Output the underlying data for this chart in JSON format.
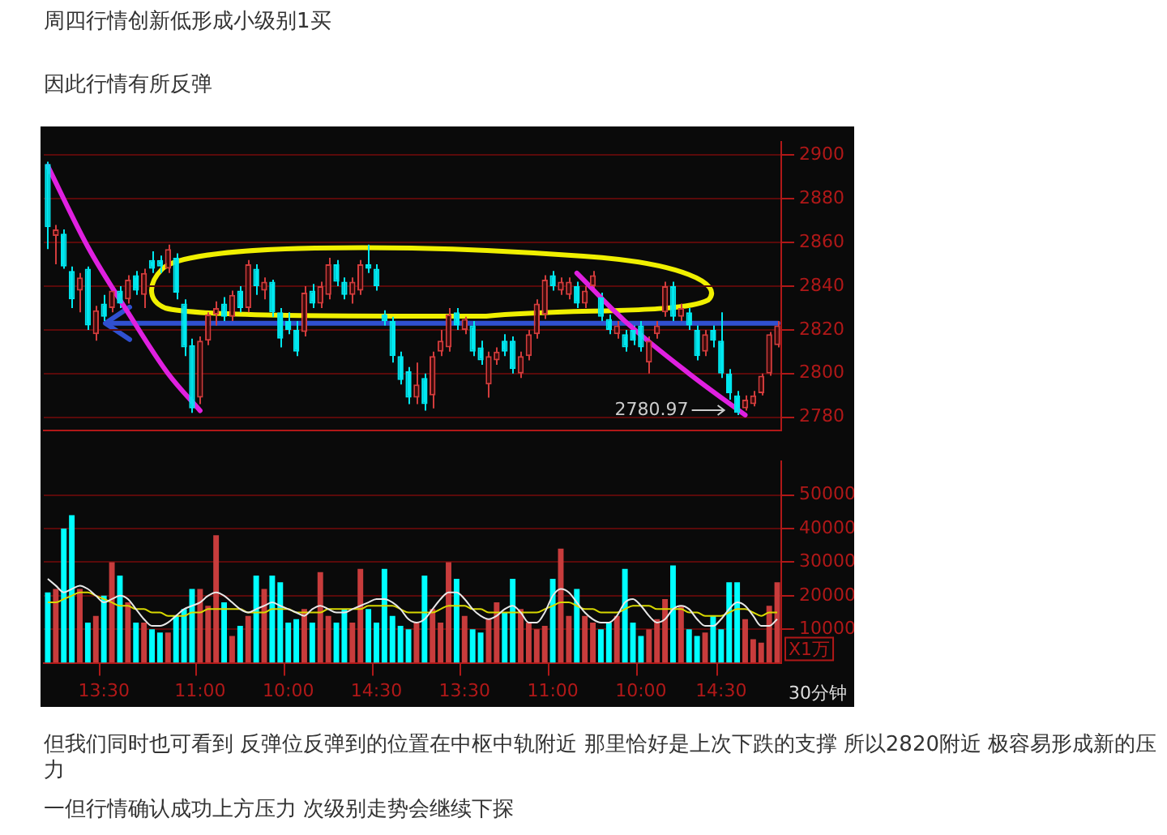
{
  "chart_data": [
    {
      "type": "candlestick",
      "title": "周四行情创新低形成小级别1买",
      "subtitle": "因此行情有所反弹",
      "categories": [
        null,
        null,
        null,
        null,
        null,
        null,
        null,
        null,
        null,
        null,
        null,
        null,
        null,
        null,
        null,
        null,
        null,
        null,
        null,
        null,
        null,
        null,
        null,
        null,
        null,
        null,
        null,
        null,
        null,
        null,
        null,
        null,
        null,
        null,
        null,
        null,
        null,
        null,
        null,
        null,
        null,
        null,
        null,
        null,
        null,
        null,
        null,
        null,
        null,
        null,
        null,
        null,
        null,
        null,
        null,
        null,
        null,
        null,
        null,
        null,
        null,
        null,
        null,
        null,
        null,
        null,
        null,
        null,
        null,
        null,
        null,
        null,
        null,
        null,
        null,
        null,
        null,
        null,
        null,
        null,
        null,
        null,
        null,
        null,
        null,
        null,
        null,
        null,
        null,
        null,
        null,
        null
      ],
      "series": [
        {
          "type": "line",
          "color": "#e020e0",
          "values": [
            2895,
            null,
            null,
            null,
            null,
            2858,
            null,
            null,
            null,
            null,
            2828,
            null,
            null,
            null,
            null,
            2800,
            null,
            null,
            null,
            2783,
            null,
            null,
            null,
            null,
            null,
            null,
            null,
            null,
            null,
            null,
            null,
            null,
            null,
            null,
            null,
            null,
            null,
            null,
            null,
            null,
            null,
            null,
            null,
            null,
            null,
            null,
            null,
            null,
            null,
            null,
            null,
            null,
            null,
            null,
            null,
            null,
            null,
            null,
            null,
            null,
            null,
            null,
            null,
            null,
            null,
            null,
            null,
            null,
            null,
            null,
            null,
            null,
            null,
            null,
            null,
            null,
            null,
            null,
            null,
            null,
            null,
            null,
            null,
            null,
            null,
            null,
            null,
            null,
            null,
            null,
            null,
            null
          ]
        },
        {
          "type": "line",
          "color": "#e020e0",
          "values": [
            null,
            null,
            null,
            null,
            null,
            null,
            null,
            null,
            null,
            null,
            null,
            null,
            null,
            null,
            null,
            null,
            null,
            null,
            null,
            null,
            null,
            null,
            null,
            null,
            null,
            null,
            null,
            null,
            null,
            null,
            null,
            null,
            null,
            null,
            null,
            null,
            null,
            null,
            null,
            null,
            null,
            null,
            null,
            null,
            null,
            null,
            null,
            null,
            null,
            null,
            null,
            null,
            null,
            null,
            null,
            null,
            null,
            null,
            null,
            null,
            null,
            null,
            null,
            null,
            null,
            null,
            2846,
            null,
            null,
            null,
            null,
            null,
            2824,
            null,
            null,
            null,
            null,
            null,
            null,
            null,
            2800,
            null,
            null,
            null,
            null,
            null,
            null,
            2781,
            null,
            null,
            null,
            null
          ]
        }
      ],
      "ref_lines": [
        {
          "axis": "y",
          "value": 2823,
          "color": "#3050d0"
        }
      ],
      "ohlc": [
        [
          2896,
          2897,
          2857,
          2867
        ],
        [
          2863,
          2868,
          2850,
          2866
        ],
        [
          2864,
          2866,
          2848,
          2849
        ],
        [
          2847,
          2849,
          2830,
          2834
        ],
        [
          2838,
          2846,
          2828,
          2844
        ],
        [
          2848,
          2849,
          2820,
          2822
        ],
        [
          2818,
          2831,
          2815,
          2829
        ],
        [
          2832,
          2836,
          2824,
          2826
        ],
        [
          2830,
          2840,
          2828,
          2838
        ],
        [
          2838,
          2840,
          2830,
          2832
        ],
        [
          2834,
          2845,
          2832,
          2843
        ],
        [
          2845,
          2847,
          2836,
          2838
        ],
        [
          2836,
          2848,
          2830,
          2846
        ],
        [
          2852,
          2856,
          2846,
          2848
        ],
        [
          2852,
          2854,
          2846,
          2849
        ],
        [
          2848,
          2859,
          2846,
          2857
        ],
        [
          2853,
          2855,
          2834,
          2837
        ],
        [
          2832,
          2834,
          2808,
          2812
        ],
        [
          2813,
          2816,
          2782,
          2784
        ],
        [
          2789,
          2817,
          2786,
          2815
        ],
        [
          2815,
          2828,
          2813,
          2827
        ],
        [
          2827,
          2833,
          2822,
          2830
        ],
        [
          2832,
          2835,
          2824,
          2826
        ],
        [
          2826,
          2838,
          2824,
          2836
        ],
        [
          2838,
          2840,
          2828,
          2830
        ],
        [
          2830,
          2852,
          2828,
          2850
        ],
        [
          2848,
          2850,
          2836,
          2840
        ],
        [
          2838,
          2844,
          2834,
          2842
        ],
        [
          2842,
          2843,
          2826,
          2828
        ],
        [
          2828,
          2830,
          2812,
          2816
        ],
        [
          2824,
          2828,
          2818,
          2820
        ],
        [
          2820,
          2824,
          2808,
          2810
        ],
        [
          2819,
          2840,
          2817,
          2837
        ],
        [
          2838,
          2841,
          2830,
          2832
        ],
        [
          2832,
          2842,
          2830,
          2840
        ],
        [
          2836,
          2853,
          2834,
          2850
        ],
        [
          2850,
          2852,
          2840,
          2842
        ],
        [
          2842,
          2844,
          2834,
          2836
        ],
        [
          2836,
          2844,
          2832,
          2842
        ],
        [
          2838,
          2852,
          2836,
          2850
        ],
        [
          2850,
          2859,
          2846,
          2848
        ],
        [
          2848,
          2850,
          2838,
          2840
        ],
        [
          2827,
          2829,
          2822,
          2824
        ],
        [
          2824,
          2826,
          2805,
          2808
        ],
        [
          2808,
          2810,
          2795,
          2797
        ],
        [
          2801,
          2803,
          2786,
          2789
        ],
        [
          2789,
          2805,
          2786,
          2795
        ],
        [
          2798,
          2800,
          2783,
          2786
        ],
        [
          2790,
          2810,
          2784,
          2808
        ],
        [
          2810,
          2820,
          2808,
          2815
        ],
        [
          2812,
          2830,
          2810,
          2827
        ],
        [
          2828,
          2830,
          2820,
          2822
        ],
        [
          2820,
          2826,
          2818,
          2825
        ],
        [
          2822,
          2824,
          2808,
          2810
        ],
        [
          2812,
          2815,
          2804,
          2806
        ],
        [
          2795,
          2810,
          2789,
          2808
        ],
        [
          2806,
          2812,
          2804,
          2810
        ],
        [
          2815,
          2818,
          2808,
          2810
        ],
        [
          2815,
          2817,
          2800,
          2802
        ],
        [
          2800,
          2810,
          2798,
          2808
        ],
        [
          2808,
          2820,
          2806,
          2818
        ],
        [
          2818,
          2834,
          2816,
          2832
        ],
        [
          2827,
          2845,
          2825,
          2843
        ],
        [
          2845,
          2847,
          2838,
          2840
        ],
        [
          2838,
          2844,
          2836,
          2842
        ],
        [
          2836,
          2844,
          2834,
          2842
        ],
        [
          2840,
          2842,
          2830,
          2832
        ],
        [
          2832,
          2840,
          2830,
          2838
        ],
        [
          2840,
          2847,
          2838,
          2845
        ],
        [
          2835,
          2837,
          2824,
          2826
        ],
        [
          2825,
          2827,
          2818,
          2820
        ],
        [
          2818,
          2824,
          2816,
          2822
        ],
        [
          2818,
          2820,
          2810,
          2812
        ],
        [
          2820,
          2822,
          2813,
          2815
        ],
        [
          2822,
          2824,
          2810,
          2812
        ],
        [
          2805,
          2817,
          2800,
          2815
        ],
        [
          2818,
          2824,
          2816,
          2822
        ],
        [
          2828,
          2842,
          2826,
          2840
        ],
        [
          2840,
          2842,
          2824,
          2826
        ],
        [
          2826,
          2832,
          2824,
          2830
        ],
        [
          2828,
          2830,
          2820,
          2822
        ],
        [
          2820,
          2822,
          2806,
          2808
        ],
        [
          2810,
          2820,
          2808,
          2818
        ],
        [
          2820,
          2822,
          2812,
          2815
        ],
        [
          2815,
          2828,
          2798,
          2800
        ],
        [
          2800,
          2802,
          2788,
          2791
        ],
        [
          2790,
          2792,
          2780.97,
          2782
        ],
        [
          2784,
          2790,
          2783,
          2788
        ],
        [
          2786,
          2792,
          2785,
          2790
        ],
        [
          2791,
          2800,
          2790,
          2799
        ],
        [
          2800,
          2819,
          2799,
          2818
        ],
        [
          2813,
          2824,
          2812,
          2822
        ]
      ],
      "ylim": [
        2774,
        2906
      ],
      "yticks": [
        2780,
        2800,
        2820,
        2840,
        2860,
        2880,
        2900
      ],
      "grid": "y",
      "tick_labels": "y",
      "annotations": [
        "2780.97",
        "但我们同时也可看到 反弹位反弹到的位置在中枢中轨附近 那里恰好是上次下跌的支撑 所以2820附近 极容易形成新的压力",
        "一但行情确认成功上方压力 次级别走势会继续下探"
      ]
    },
    {
      "type": "bar",
      "ylabel": "X1万",
      "annotations": [
        "30分钟"
      ],
      "categories": [
        null,
        null,
        null,
        null,
        null,
        null,
        null,
        "13:30",
        null,
        null,
        null,
        null,
        null,
        null,
        null,
        null,
        null,
        null,
        null,
        "11:00",
        null,
        null,
        null,
        null,
        null,
        null,
        null,
        null,
        null,
        null,
        "10:00",
        null,
        null,
        null,
        null,
        null,
        null,
        null,
        null,
        null,
        null,
        "14:30",
        null,
        null,
        null,
        null,
        null,
        null,
        null,
        null,
        null,
        null,
        "13:30",
        null,
        null,
        null,
        null,
        null,
        null,
        null,
        null,
        null,
        null,
        "11:00",
        null,
        null,
        null,
        null,
        null,
        null,
        null,
        null,
        null,
        null,
        "10:00",
        null,
        null,
        null,
        null,
        null,
        null,
        null,
        null,
        null,
        "14:30",
        null,
        null,
        null,
        null,
        null,
        null,
        null
      ],
      "series": [
        {
          "type": "bar",
          "values": [
            21000,
            22000,
            40000,
            44000,
            22000,
            12000,
            14000,
            20000,
            30000,
            26000,
            18000,
            12000,
            12000,
            10000,
            9000,
            9000,
            14000,
            16000,
            22000,
            22000,
            17000,
            38000,
            18000,
            8000,
            11000,
            14000,
            26000,
            22000,
            26000,
            24000,
            12000,
            13000,
            16000,
            12000,
            27000,
            14000,
            12000,
            16000,
            12000,
            28000,
            16000,
            12000,
            28000,
            14000,
            11000,
            10000,
            12000,
            26000,
            16000,
            12000,
            30000,
            25000,
            14000,
            10000,
            9000,
            13000,
            18000,
            15000,
            25000,
            16000,
            12000,
            10000,
            11000,
            25000,
            34000,
            14000,
            22000,
            14000,
            12000,
            10000,
            12000,
            14000,
            28000,
            12000,
            8000,
            10000,
            13000,
            19000,
            29000,
            17000,
            10000,
            8000,
            9000,
            14000,
            10000,
            24000,
            24000,
            13000,
            7000,
            6000,
            17000,
            24000
          ],
          "colors": [
            "#00ffff",
            "#c83c3c",
            "#00ffff",
            "#00ffff",
            "#c83c3c",
            "#00ffff",
            "#c83c3c",
            "#00ffff",
            "#c83c3c",
            "#00ffff",
            "#c83c3c",
            "#00ffff",
            "#c83c3c",
            "#00ffff",
            "#00ffff",
            "#c83c3c",
            "#00ffff",
            "#00ffff",
            "#00ffff",
            "#c83c3c",
            "#c83c3c",
            "#c83c3c",
            "#00ffff",
            "#c83c3c",
            "#00ffff",
            "#c83c3c",
            "#00ffff",
            "#c83c3c",
            "#00ffff",
            "#00ffff",
            "#00ffff",
            "#00ffff",
            "#c83c3c",
            "#00ffff",
            "#c83c3c",
            "#c83c3c",
            "#00ffff",
            "#00ffff",
            "#c83c3c",
            "#c83c3c",
            "#00ffff",
            "#00ffff",
            "#00ffff",
            "#00ffff",
            "#00ffff",
            "#00ffff",
            "#c83c3c",
            "#00ffff",
            "#c83c3c",
            "#c83c3c",
            "#c83c3c",
            "#00ffff",
            "#c83c3c",
            "#00ffff",
            "#00ffff",
            "#c83c3c",
            "#c83c3c",
            "#00ffff",
            "#00ffff",
            "#c83c3c",
            "#c83c3c",
            "#c83c3c",
            "#c83c3c",
            "#00ffff",
            "#c83c3c",
            "#c83c3c",
            "#00ffff",
            "#c83c3c",
            "#c83c3c",
            "#00ffff",
            "#00ffff",
            "#c83c3c",
            "#00ffff",
            "#00ffff",
            "#00ffff",
            "#c83c3c",
            "#c83c3c",
            "#c83c3c",
            "#00ffff",
            "#c83c3c",
            "#00ffff",
            "#00ffff",
            "#c83c3c",
            "#00ffff",
            "#00ffff",
            "#00ffff",
            "#00ffff",
            "#c83c3c",
            "#c83c3c",
            "#c83c3c",
            "#c83c3c",
            "#c83c3c"
          ]
        },
        {
          "type": "line",
          "color": "#e8e8e8",
          "values": [
            25000,
            23000,
            21000,
            22000,
            23000,
            22000,
            20000,
            18000,
            19000,
            20000,
            19000,
            16000,
            13000,
            11000,
            11000,
            12000,
            14000,
            16000,
            17000,
            18000,
            20000,
            21000,
            20000,
            18000,
            16000,
            15000,
            16000,
            17000,
            18000,
            17000,
            16000,
            15000,
            14000,
            16000,
            17000,
            16000,
            15000,
            15000,
            16000,
            17000,
            18000,
            19000,
            19000,
            18000,
            16000,
            13000,
            12000,
            13000,
            16000,
            19000,
            21000,
            21000,
            19000,
            16000,
            14000,
            13000,
            14000,
            16000,
            17000,
            15000,
            12000,
            12000,
            15000,
            20000,
            22000,
            21000,
            18000,
            15000,
            13000,
            12000,
            12000,
            14000,
            18000,
            19000,
            17000,
            14000,
            12000,
            13000,
            16000,
            17000,
            16000,
            13000,
            11000,
            11000,
            13000,
            16000,
            18000,
            17000,
            14000,
            11000,
            11000,
            13000
          ]
        },
        {
          "type": "line",
          "color": "#d8d800",
          "values": [
            18000,
            18000,
            19000,
            20000,
            21000,
            21000,
            20000,
            19000,
            18000,
            17000,
            17000,
            16000,
            16000,
            15000,
            15000,
            14000,
            14000,
            14000,
            15000,
            15000,
            16000,
            16000,
            16000,
            16000,
            16000,
            15000,
            15000,
            15000,
            16000,
            16000,
            16000,
            15000,
            15000,
            15000,
            15000,
            16000,
            16000,
            16000,
            16000,
            16000,
            17000,
            17000,
            17000,
            17000,
            16000,
            15000,
            15000,
            15000,
            15000,
            16000,
            17000,
            17000,
            17000,
            16000,
            16000,
            15000,
            15000,
            15000,
            15000,
            15000,
            15000,
            15000,
            16000,
            17000,
            18000,
            18000,
            17000,
            16000,
            16000,
            15000,
            15000,
            15000,
            16000,
            17000,
            17000,
            17000,
            16000,
            16000,
            16000,
            16000,
            15000,
            15000,
            14000,
            14000,
            14000,
            15000,
            16000,
            16000,
            15000,
            14000,
            15000,
            15000
          ]
        }
      ],
      "ylim": [
        0,
        60000
      ],
      "yticks": [
        10000,
        20000,
        30000,
        40000,
        50000
      ],
      "grid": "y",
      "marker": "none"
    }
  ]
}
